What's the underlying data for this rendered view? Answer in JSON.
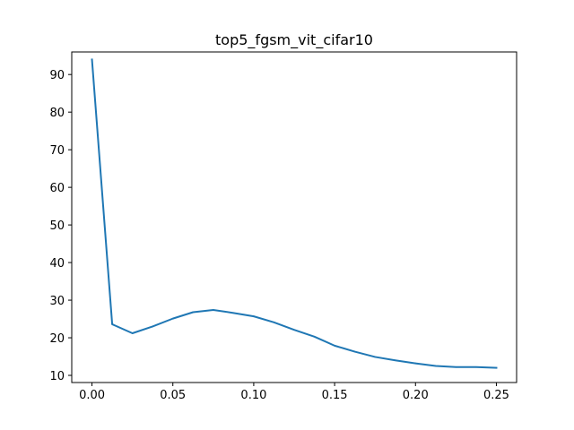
{
  "chart_data": {
    "type": "line",
    "title": "top5_fgsm_vit_cifar10",
    "xlabel": "",
    "ylabel": "",
    "xlim": [
      -0.0125,
      0.2625
    ],
    "ylim": [
      8.1,
      96.0
    ],
    "xticks": [
      0.0,
      0.05,
      0.1,
      0.15,
      0.2,
      0.25
    ],
    "xtick_labels": [
      "0.00",
      "0.05",
      "0.10",
      "0.15",
      "0.20",
      "0.25"
    ],
    "yticks": [
      10,
      20,
      30,
      40,
      50,
      60,
      70,
      80,
      90
    ],
    "ytick_labels": [
      "10",
      "20",
      "30",
      "40",
      "50",
      "60",
      "70",
      "80",
      "90"
    ],
    "grid": false,
    "series": [
      {
        "color": "#1f77b4",
        "x": [
          0.0,
          0.0125,
          0.025,
          0.0375,
          0.05,
          0.0625,
          0.075,
          0.0875,
          0.1,
          0.1125,
          0.125,
          0.1375,
          0.15,
          0.1625,
          0.175,
          0.1875,
          0.2,
          0.2125,
          0.225,
          0.2375,
          0.25
        ],
        "y": [
          94.0,
          23.6,
          21.2,
          23.0,
          25.1,
          26.8,
          27.4,
          26.6,
          25.7,
          24.1,
          22.1,
          20.3,
          17.9,
          16.3,
          14.9,
          14.0,
          13.2,
          12.5,
          12.2,
          12.2,
          12.0
        ]
      }
    ]
  }
}
